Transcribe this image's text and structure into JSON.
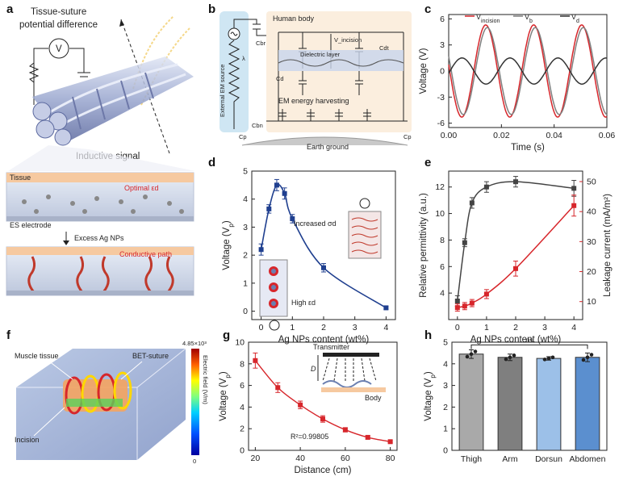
{
  "panels": {
    "a": {
      "label": "a",
      "title_line1": "Tissue-suture",
      "title_line2": "potential difference",
      "meter": "V",
      "inductive": "Inductive signal",
      "tissue": "Tissue",
      "optimal": "Optimal εd",
      "electrode": "ES electrode",
      "excess": "Excess Ag NPs",
      "conductive": "Conductive path"
    },
    "b": {
      "label": "b",
      "human_body": "Human body",
      "v_incision": "V_incision",
      "dielectric": "Dielectric layer",
      "ext_source": "External EM source",
      "harvest": "EM energy harvesting",
      "earth": "Earth ground",
      "lambda": "λ",
      "cbr": "Cbr",
      "cd": "Cd",
      "cdt": "Cdt",
      "cbn": "Cbn",
      "cp": "Cp",
      "cp2": "Cp"
    },
    "c": {
      "label": "c"
    },
    "d": {
      "label": "d",
      "increased": "Increased σd",
      "high": "High εd"
    },
    "e": {
      "label": "e"
    },
    "f": {
      "label": "f",
      "muscle": "Muscle tissue",
      "bet": "BET-suture",
      "incision": "Incision",
      "cb_max": "4.85×10³",
      "cb_min": "0",
      "cb_title": "Electric field (V/m)"
    },
    "g": {
      "label": "g",
      "transmitter": "Transmitter",
      "d": "D",
      "body": "Body"
    },
    "h": {
      "label": "h",
      "ns": "ns"
    }
  },
  "chart_data": [
    {
      "id": "c",
      "type": "line",
      "xlabel": "Time (s)",
      "ylabel": "Voltage (V)",
      "xlim": [
        0,
        0.06
      ],
      "ylim": [
        -6.5,
        6.5
      ],
      "xticks": [
        "0.00",
        "0.02",
        "0.04",
        "0.06"
      ],
      "yticks": [
        "-6",
        "-3",
        "0",
        "3",
        "6"
      ],
      "series": [
        {
          "name": "V_incision",
          "color": "#d7262b",
          "amplitude": 5.3,
          "period": 0.0182,
          "phase": 0.0095,
          "offset": 0.0
        },
        {
          "name": "V_b",
          "color": "#7f7f7f",
          "amplitude": 5.0,
          "period": 0.0182,
          "phase": 0.0101,
          "offset": 0.0
        },
        {
          "name": "V_d",
          "color": "#333333",
          "amplitude": 1.5,
          "period": 0.0182,
          "phase": 0.0005,
          "offset": 0.0
        }
      ],
      "legend": [
        "V_incision",
        "V_b",
        "V_d"
      ]
    },
    {
      "id": "d",
      "type": "line",
      "xlabel": "Ag NPs content (wt%)",
      "ylabel": "Voltage (Vp)",
      "xlim": [
        -0.3,
        4.3
      ],
      "ylim": [
        -0.3,
        5
      ],
      "xticks": [
        "0",
        "1",
        "2",
        "3",
        "4"
      ],
      "yticks": [
        "0",
        "1",
        "2",
        "3",
        "4",
        "5"
      ],
      "x": [
        0,
        0.25,
        0.5,
        0.75,
        1,
        2,
        4
      ],
      "values": [
        2.2,
        3.65,
        4.5,
        4.2,
        3.3,
        1.55,
        0.12
      ],
      "errors": [
        0.2,
        0.15,
        0.2,
        0.2,
        0.15,
        0.15,
        0.05
      ],
      "color": "#1f3f8f"
    },
    {
      "id": "e",
      "type": "line",
      "xlabel": "Ag NPs content (wt%)",
      "ylabel": "Relative permittivity (a.u.)",
      "y2label": "Leakage current (mA/m²)",
      "xlim": [
        -0.3,
        4.3
      ],
      "ylim": [
        2,
        13.2
      ],
      "y2lim": [
        4,
        53.5
      ],
      "xticks": [
        "0",
        "1",
        "2",
        "3",
        "4"
      ],
      "yticks": [
        "4",
        "6",
        "8",
        "10",
        "12"
      ],
      "y2ticks": [
        "10",
        "20",
        "30",
        "40",
        "50"
      ],
      "series": [
        {
          "name": "Relative permittivity",
          "color": "#444444",
          "axis": "left",
          "x": [
            0,
            0.25,
            0.5,
            1,
            2,
            4
          ],
          "values": [
            3.4,
            7.8,
            10.8,
            12.0,
            12.4,
            11.9
          ],
          "errors": [
            0.4,
            0.3,
            0.4,
            0.4,
            0.4,
            0.6
          ]
        },
        {
          "name": "Leakage current",
          "color": "#d7262b",
          "axis": "right",
          "x": [
            0,
            0.25,
            0.5,
            1,
            2,
            4
          ],
          "values": [
            8,
            8.5,
            9.5,
            12.5,
            21,
            42
          ],
          "errors": [
            1.2,
            1.2,
            1.2,
            1.5,
            2.5,
            3.5
          ]
        }
      ]
    },
    {
      "id": "g",
      "type": "scatter",
      "xlabel": "Distance (cm)",
      "ylabel": "Voltage (Vp)",
      "xlim": [
        17,
        83
      ],
      "ylim": [
        0,
        10
      ],
      "xticks": [
        "20",
        "40",
        "60",
        "80"
      ],
      "yticks": [
        "0",
        "2",
        "4",
        "6",
        "8",
        "10"
      ],
      "x": [
        20,
        30,
        40,
        50,
        60,
        70,
        80
      ],
      "values": [
        8.3,
        5.8,
        4.2,
        2.9,
        1.9,
        1.2,
        0.8
      ],
      "errors": [
        0.7,
        0.45,
        0.35,
        0.3,
        0.2,
        0.15,
        0.1
      ],
      "fit_label": "R²=0.99805",
      "color": "#d7262b"
    },
    {
      "id": "h",
      "type": "bar",
      "ylabel": "Voltage (Vp)",
      "ylim": [
        0,
        5
      ],
      "yticks": [
        "0",
        "1",
        "2",
        "3",
        "4",
        "5"
      ],
      "categories": [
        "Thigh",
        "Arm",
        "Dorsun",
        "Abdomen"
      ],
      "values": [
        4.45,
        4.3,
        4.25,
        4.3
      ],
      "errors": [
        0.2,
        0.15,
        0.08,
        0.2
      ],
      "colors": [
        "#a9a9a9",
        "#7f7f7f",
        "#9cc0e8",
        "#5b8fcf"
      ]
    }
  ]
}
